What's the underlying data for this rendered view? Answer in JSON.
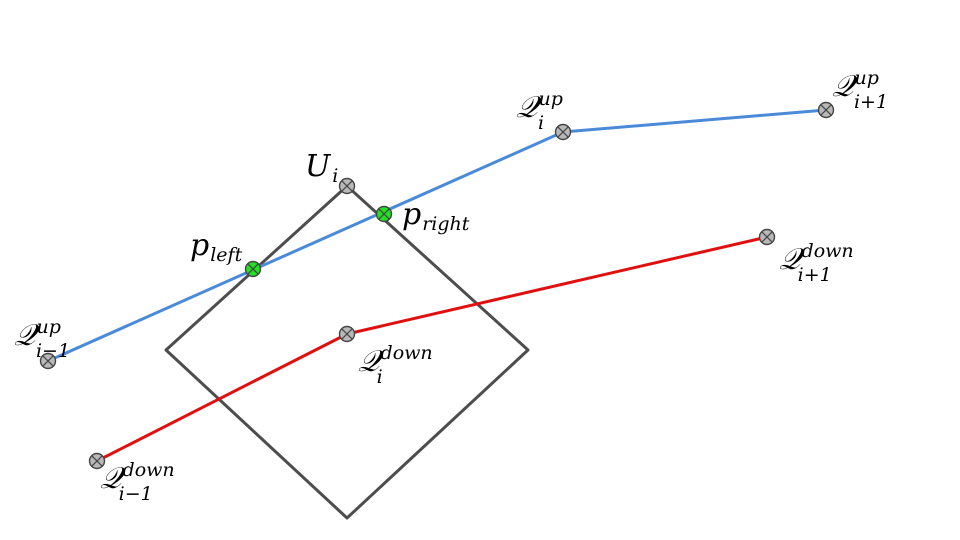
{
  "colors": {
    "up_line": "#4a8ad8",
    "down_line": "#e01010",
    "square": "#4d4d4d",
    "point_default": "#b8b8b8",
    "point_intersection": "#22e022"
  },
  "labels": {
    "q_up_prev": {
      "main": "𝒬",
      "sup": "up",
      "sub": "i−1"
    },
    "q_up_cur": {
      "main": "𝒬",
      "sup": "up",
      "sub": "i"
    },
    "q_up_next": {
      "main": "𝒬",
      "sup": "up",
      "sub": "i+1"
    },
    "q_down_prev": {
      "main": "𝒬",
      "sup": "down",
      "sub": "i−1"
    },
    "q_down_cur": {
      "main": "𝒬",
      "sup": "down",
      "sub": "i"
    },
    "q_down_next": {
      "main": "𝒬",
      "sup": "down",
      "sub": "i+1"
    },
    "u": {
      "main": "U",
      "sub": "i"
    },
    "p_left": {
      "main": "p",
      "sub": "left"
    },
    "p_right": {
      "main": "p",
      "sub": "right"
    }
  }
}
